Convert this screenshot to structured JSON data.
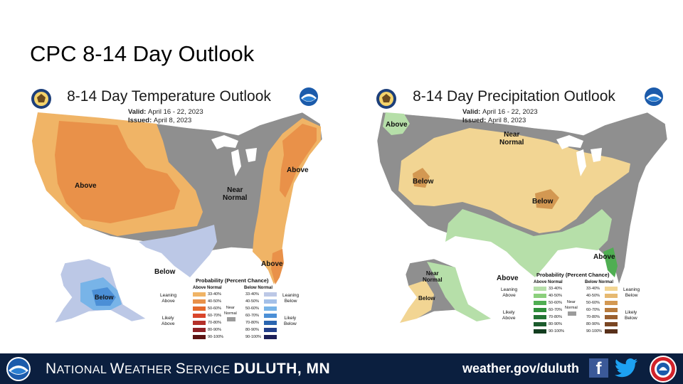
{
  "slide": {
    "title": "CPC 8-14 Day Outlook"
  },
  "temperature": {
    "title": "8-14 Day Temperature Outlook",
    "valid_label": "Valid:",
    "valid": "April 16 - 22, 2023",
    "issued_label": "Issued:",
    "issued": "April 8, 2023",
    "labels": {
      "above_west": "Above",
      "above_ne": "Above",
      "near_normal": "Near\nNormal",
      "below_tx": "Below",
      "above_se": "Above",
      "below_ak": "Below"
    },
    "legend": {
      "title": "Probability (Percent Chance)",
      "above_head": "Above Normal",
      "below_head": "Below Normal",
      "leaning_above": "Leaning\nAbove",
      "likely_above": "Likely\nAbove",
      "leaning_below": "Leaning\nBelow",
      "likely_below": "Likely\nBelow",
      "near_normal": "Near\nNormal",
      "ranges": [
        "33-40%",
        "40-50%",
        "50-60%",
        "60-70%",
        "70-80%",
        "80-90%",
        "90-100%"
      ],
      "above_colors": [
        "#f0b466",
        "#e99149",
        "#e4692c",
        "#d9452b",
        "#b4302a",
        "#8e2126",
        "#5c1414"
      ],
      "below_colors": [
        "#bcc8e6",
        "#a4c0e8",
        "#78b4e8",
        "#4b8fd6",
        "#2a65b0",
        "#223f8a",
        "#1c1f58"
      ],
      "near_color": "#9b9b9b"
    }
  },
  "precipitation": {
    "title": "8-14 Day Precipitation Outlook",
    "valid_label": "Valid:",
    "valid": "April 16 - 22, 2023",
    "issued_label": "Issued:",
    "issued": "April 8, 2023",
    "labels": {
      "above_nw": "Above",
      "near_normal": "Near\nNormal",
      "below_w": "Below",
      "below_mw": "Below",
      "above_se": "Above",
      "above_tx": "Above",
      "near_ak": "Near\nNormal",
      "below_ak": "Below"
    },
    "legend": {
      "title": "Probability (Percent Chance)",
      "above_head": "Above Normal",
      "below_head": "Below Normal",
      "leaning_above": "Leaning\nAbove",
      "likely_above": "Likely\nAbove",
      "leaning_below": "Leaning\nBelow",
      "likely_below": "Likely\nBelow",
      "near_normal": "Near\nNormal",
      "ranges": [
        "33-40%",
        "40-50%",
        "50-60%",
        "60-70%",
        "70-80%",
        "80-90%",
        "90-100%"
      ],
      "above_colors": [
        "#b6dfa9",
        "#8bcf7c",
        "#4fae52",
        "#2f8f3b",
        "#237434",
        "#1c5b2c",
        "#123d1f"
      ],
      "below_colors": [
        "#f2d593",
        "#e6b971",
        "#d39852",
        "#b87b3d",
        "#9a5f2f",
        "#7a4623",
        "#58301a"
      ],
      "near_color": "#9b9b9b"
    }
  },
  "footer": {
    "org_initial_1": "N",
    "org_rest_1": "ATIONAL ",
    "org_initial_2": "W",
    "org_rest_2": "EATHER ",
    "org_initial_3": "S",
    "org_rest_3": "ERVICE ",
    "office": "DULUTH, MN",
    "url": "weather.gov/duluth",
    "facebook_glyph": "f"
  },
  "colors": {
    "footer_bg": "#0b1f3f",
    "near_normal_gray": "#8f8f8f",
    "temp_above_light": "#f0b466",
    "temp_above_mid": "#e99149",
    "temp_below_light": "#bcc8e6",
    "precip_above_light": "#b6dfa9",
    "precip_below_light": "#f2d593"
  },
  "icons": [
    "doc-seal-icon",
    "noaa-logo-icon",
    "facebook-icon",
    "twitter-icon",
    "nws-logo-icon"
  ]
}
